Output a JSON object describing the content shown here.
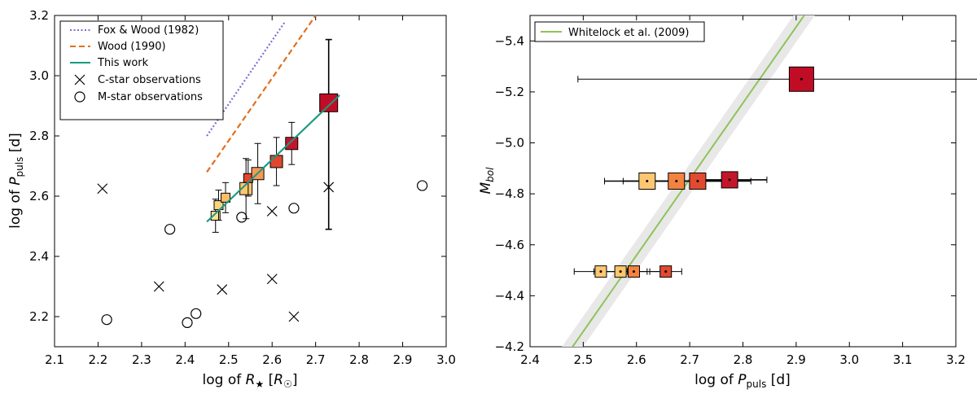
{
  "chart_data": [
    {
      "type": "scatter",
      "xlabel": "log of R★ [R☉]",
      "ylabel": "log of P_puls [d]",
      "xlim": [
        2.1,
        3.0
      ],
      "ylim": [
        2.1,
        3.2
      ],
      "xticks": [
        "2.1",
        "2.2",
        "2.3",
        "2.4",
        "2.5",
        "2.6",
        "2.7",
        "2.8",
        "2.9",
        "3.0"
      ],
      "yticks": [
        "2.2",
        "2.4",
        "2.6",
        "2.8",
        "3.0",
        "3.2"
      ],
      "legend": {
        "placement": "top-left",
        "entries": [
          "Fox & Wood (1982)",
          "Wood (1990)",
          "This work",
          "C-star observations",
          "M-star observations"
        ]
      },
      "lines": [
        {
          "name": "Fox & Wood (1982)",
          "style": "dotted",
          "color": "#7b6fd6",
          "x": [
            2.45,
            2.63
          ],
          "y": [
            2.8,
            3.18
          ]
        },
        {
          "name": "Wood (1990)",
          "style": "dashed",
          "color": "#e0701f",
          "x": [
            2.45,
            2.7
          ],
          "y": [
            2.68,
            3.2
          ]
        },
        {
          "name": "This work",
          "style": "solid",
          "color": "#1a9a80",
          "x": [
            2.45,
            2.755
          ],
          "y": [
            2.515,
            2.935
          ]
        }
      ],
      "c_star_observations": {
        "x": [
          2.21,
          2.34,
          2.485,
          2.6,
          2.6,
          2.65,
          2.73
        ],
        "y": [
          2.625,
          2.3,
          2.29,
          2.325,
          2.55,
          2.2,
          2.63
        ]
      },
      "m_star_observations": {
        "x": [
          2.22,
          2.365,
          2.405,
          2.425,
          2.53,
          2.65,
          2.945
        ],
        "y": [
          2.19,
          2.49,
          2.18,
          2.21,
          2.53,
          2.56,
          2.635
        ]
      },
      "models": [
        {
          "x": 2.47,
          "y": 2.535,
          "yerr_low": 0.055,
          "yerr_high": 0.055,
          "color": "#fee29a",
          "size": "small"
        },
        {
          "x": 2.477,
          "y": 2.57,
          "yerr_low": 0.05,
          "yerr_high": 0.05,
          "color": "#fdd27e",
          "size": "small"
        },
        {
          "x": 2.493,
          "y": 2.595,
          "yerr_low": 0.05,
          "yerr_high": 0.05,
          "color": "#fdbd6b",
          "size": "small"
        },
        {
          "x": 2.54,
          "y": 2.625,
          "yerr_low": 0.1,
          "yerr_high": 0.1,
          "color": "#fbc66e",
          "size": "medium"
        },
        {
          "x": 2.545,
          "y": 2.66,
          "yerr_low": 0.06,
          "yerr_high": 0.06,
          "color": "#e4472d",
          "size": "small"
        },
        {
          "x": 2.567,
          "y": 2.675,
          "yerr_low": 0.1,
          "yerr_high": 0.1,
          "color": "#f59a55",
          "size": "medium"
        },
        {
          "x": 2.61,
          "y": 2.715,
          "yerr_low": 0.08,
          "yerr_high": 0.08,
          "color": "#e0472e",
          "size": "medium"
        },
        {
          "x": 2.645,
          "y": 2.775,
          "yerr_low": 0.07,
          "yerr_high": 0.07,
          "color": "#c4162a",
          "size": "medium"
        },
        {
          "x": 2.73,
          "y": 2.91,
          "yerr_low": 0.42,
          "yerr_high": 0.21,
          "color": "#c00d25",
          "size": "large"
        }
      ]
    },
    {
      "type": "scatter",
      "xlabel": "log of P_puls [d]",
      "ylabel": "M_bol",
      "xlim": [
        2.4,
        3.2
      ],
      "ylim": [
        -4.2,
        -5.5
      ],
      "xticks": [
        "2.4",
        "2.5",
        "2.6",
        "2.7",
        "2.8",
        "2.9",
        "3.0",
        "3.1",
        "3.2"
      ],
      "yticks": [
        "−5.4",
        "−5.2",
        "−5.0",
        "−4.8",
        "−4.6",
        "−4.4",
        "−4.2"
      ],
      "legend": {
        "placement": "top-left",
        "entries": [
          "Whitelock et al. (2009)"
        ]
      },
      "relation": {
        "name": "Whitelock et al. (2009)",
        "color": "#8fc35a",
        "x": [
          2.48,
          2.915
        ],
        "y": [
          -4.2,
          -5.5
        ],
        "band": 0.02
      },
      "models": [
        {
          "x": 2.91,
          "y": -5.25,
          "xerr": 0.42,
          "color": "#c00d25",
          "size": "large"
        },
        {
          "x": 2.62,
          "y": -4.85,
          "xerr": 0.08,
          "color": "#fdc772",
          "size": "medium"
        },
        {
          "x": 2.675,
          "y": -4.85,
          "xerr": 0.1,
          "color": "#f3833f",
          "size": "medium"
        },
        {
          "x": 2.715,
          "y": -4.85,
          "xerr": 0.1,
          "color": "#e24a30",
          "size": "medium"
        },
        {
          "x": 2.775,
          "y": -4.855,
          "xerr": 0.07,
          "color": "#c4162a",
          "size": "medium"
        },
        {
          "x": 2.533,
          "y": -4.495,
          "xerr": 0.05,
          "color": "#fdc772",
          "size": "small"
        },
        {
          "x": 2.57,
          "y": -4.495,
          "xerr": 0.05,
          "color": "#fdc56c",
          "size": "small"
        },
        {
          "x": 2.595,
          "y": -4.495,
          "xerr": 0.06,
          "color": "#f3833f",
          "size": "small"
        },
        {
          "x": 2.655,
          "y": -4.495,
          "xerr": 0.03,
          "color": "#e24a30",
          "size": "small"
        }
      ]
    }
  ]
}
